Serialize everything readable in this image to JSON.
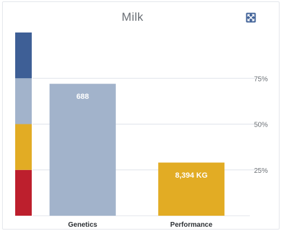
{
  "chart_data": {
    "type": "bar",
    "title": "Milk",
    "categories": [
      "Genetics",
      "Performance"
    ],
    "values": [
      0.72,
      0.29
    ],
    "data_labels": [
      "688",
      "8,394 KG"
    ],
    "bar_colors": [
      "#a2b3cb",
      "#e2ac24"
    ],
    "ylim": [
      0,
      1
    ],
    "yticks": [
      0.25,
      0.5,
      0.75
    ],
    "ytick_labels": [
      "25%",
      "50%",
      "75%"
    ],
    "grid": true,
    "band": {
      "segments": [
        {
          "from": 0,
          "to": 0.25,
          "color": "#bd1f2d"
        },
        {
          "from": 0.25,
          "to": 0.5,
          "color": "#e2ac24"
        },
        {
          "from": 0.5,
          "to": 0.75,
          "color": "#a2b3cb"
        },
        {
          "from": 0.75,
          "to": 1,
          "color": "#3e5f96"
        }
      ]
    },
    "expand_icon": "expand-icon"
  }
}
